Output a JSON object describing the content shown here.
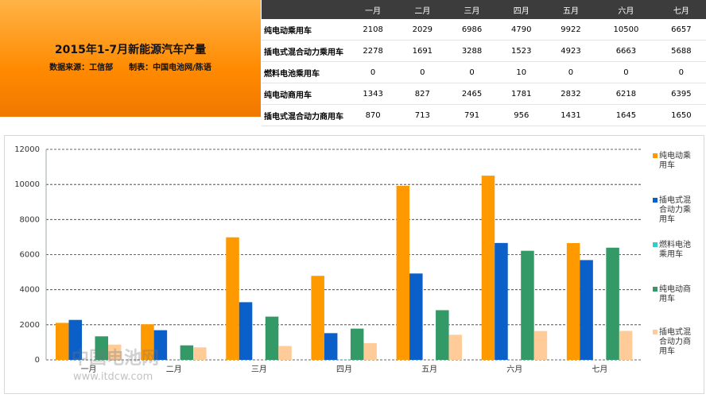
{
  "chart_data": {
    "type": "bar",
    "title": "2015年1-7月新能源汽车产量",
    "subtitle": "数据来源：工信部　　制表：中国电池网/陈语",
    "watermark_name": "中国电池网",
    "watermark_url": "www.itdcw.com",
    "categories": [
      "一月",
      "二月",
      "三月",
      "四月",
      "五月",
      "六月",
      "七月"
    ],
    "series": [
      {
        "name": "纯电动乘用车",
        "color": "#ff9900",
        "values": [
          2108,
          2029,
          6986,
          4790,
          9922,
          10500,
          6657
        ]
      },
      {
        "name": "插电式混合动力乘用车",
        "color": "#0a5fc8",
        "values": [
          2278,
          1691,
          3288,
          1523,
          4923,
          6663,
          5688
        ]
      },
      {
        "name": "燃料电池乘用车",
        "color": "#33cccc",
        "values": [
          0,
          0,
          0,
          10,
          0,
          0,
          0
        ]
      },
      {
        "name": "纯电动商用车",
        "color": "#339966",
        "values": [
          1343,
          827,
          2465,
          1781,
          2832,
          6218,
          6395
        ]
      },
      {
        "name": "插电式混合动力商用车",
        "color": "#ffcc99",
        "values": [
          870,
          713,
          791,
          956,
          1431,
          1645,
          1650
        ]
      }
    ],
    "ylim": [
      0,
      12000
    ],
    "yticks": [
      0,
      2000,
      4000,
      6000,
      8000,
      10000,
      12000
    ],
    "grid": true,
    "legend": "right"
  }
}
